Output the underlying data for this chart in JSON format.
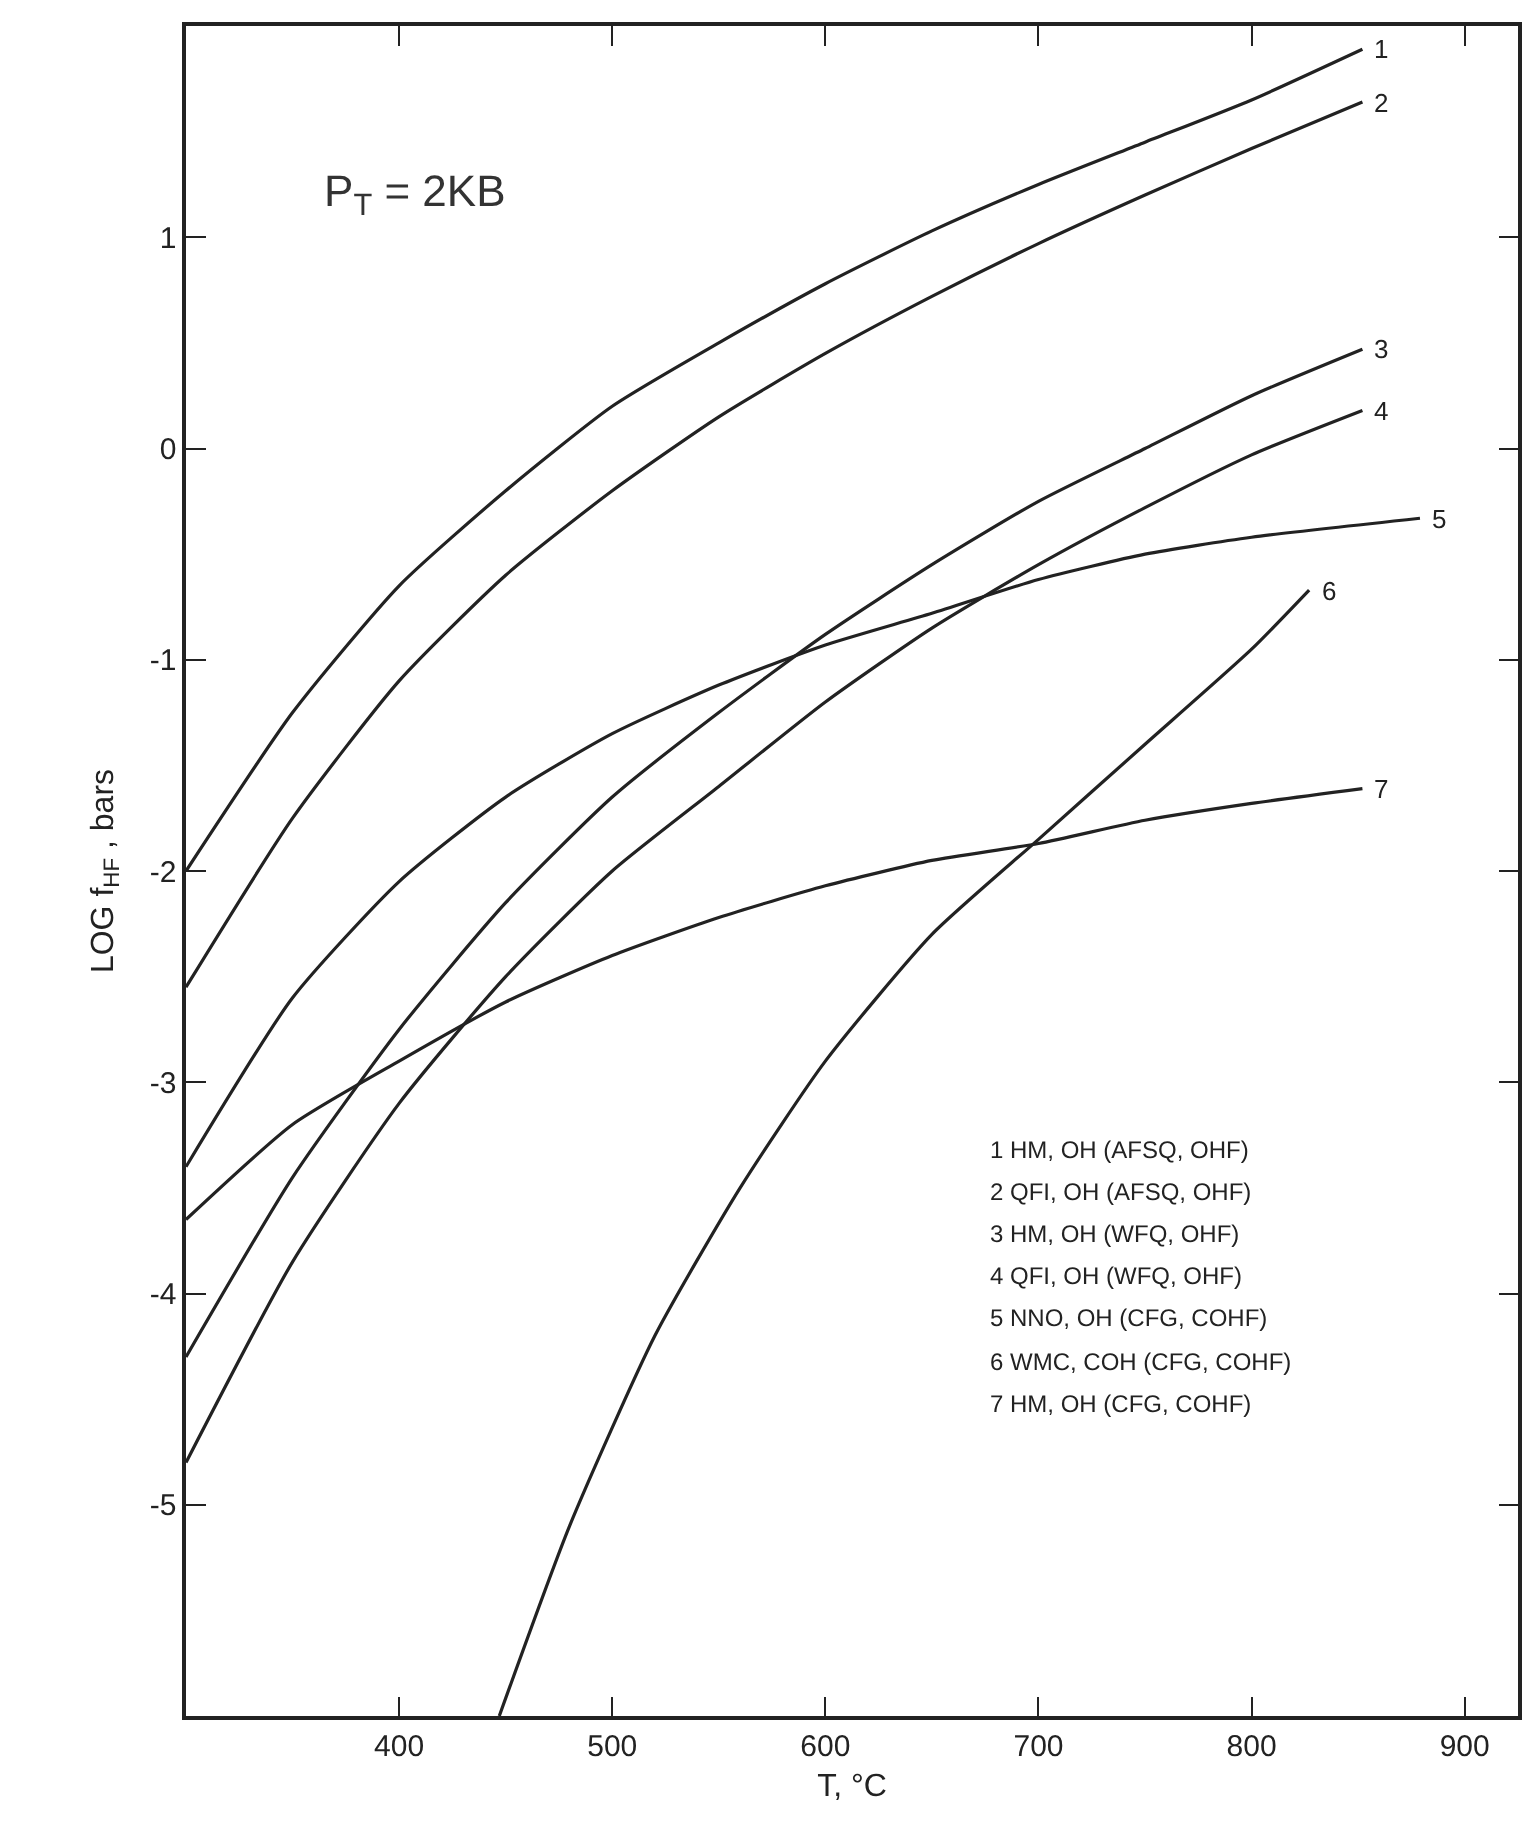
{
  "chart_data": {
    "type": "line",
    "xlabel": "T, °C",
    "ylabel": "LOG f$_{HF}$ , bars",
    "annotations": [
      "P$_{T}$ = 2KB",
      "1 HM, OH (AFSQ, OHF)",
      "2 QFI, OH (AFSQ, OHF)",
      "3 HM, OH (WFQ, OHF)",
      "4 QFI, OH (WFQ, OHF)",
      "5 NNO, OH (CFG, COHF)",
      "6 WMC, COH (CFG, COHF)",
      "7 HM, OH (CFG, COHF)"
    ],
    "series": [
      {
        "name": "1",
        "color": "#222222",
        "x": [
          300,
          350,
          400,
          450,
          500,
          550,
          600,
          650,
          700,
          750,
          800,
          852
        ],
        "values": [
          -2.0,
          -1.25,
          -0.65,
          -0.2,
          0.2,
          0.5,
          0.78,
          1.03,
          1.25,
          1.45,
          1.65,
          1.89
        ]
      },
      {
        "name": "2",
        "color": "#222222",
        "x": [
          300,
          350,
          400,
          450,
          500,
          550,
          600,
          650,
          700,
          750,
          800,
          852
        ],
        "values": [
          -2.55,
          -1.75,
          -1.1,
          -0.6,
          -0.2,
          0.15,
          0.45,
          0.72,
          0.97,
          1.2,
          1.42,
          1.64
        ]
      },
      {
        "name": "3",
        "color": "#222222",
        "x": [
          300,
          350,
          400,
          450,
          500,
          550,
          600,
          650,
          700,
          750,
          800,
          852
        ],
        "values": [
          -4.3,
          -3.45,
          -2.75,
          -2.15,
          -1.65,
          -1.25,
          -0.88,
          -0.55,
          -0.25,
          0.0,
          0.25,
          0.47
        ]
      },
      {
        "name": "4",
        "color": "#222222",
        "x": [
          300,
          350,
          400,
          450,
          500,
          550,
          600,
          650,
          700,
          750,
          800,
          852
        ],
        "values": [
          -4.8,
          -3.85,
          -3.1,
          -2.5,
          -2.0,
          -1.6,
          -1.2,
          -0.85,
          -0.55,
          -0.28,
          -0.03,
          0.18
        ]
      },
      {
        "name": "5",
        "color": "#222222",
        "x": [
          300,
          350,
          400,
          450,
          500,
          550,
          600,
          650,
          700,
          750,
          800,
          879
        ],
        "values": [
          -3.4,
          -2.6,
          -2.05,
          -1.65,
          -1.35,
          -1.12,
          -0.93,
          -0.78,
          -0.62,
          -0.5,
          -0.42,
          -0.33
        ]
      },
      {
        "name": "6",
        "color": "#222222",
        "x": [
          447,
          480,
          520,
          560,
          600,
          650,
          700,
          750,
          800,
          827
        ],
        "values": [
          -6.0,
          -5.1,
          -4.2,
          -3.5,
          -2.9,
          -2.3,
          -1.85,
          -1.4,
          -0.95,
          -0.67
        ]
      },
      {
        "name": "7",
        "color": "#222222",
        "x": [
          300,
          350,
          400,
          450,
          500,
          550,
          600,
          650,
          700,
          750,
          800,
          852
        ],
        "values": [
          -3.65,
          -3.2,
          -2.9,
          -2.62,
          -2.4,
          -2.22,
          -2.07,
          -1.95,
          -1.87,
          -1.76,
          -1.68,
          -1.61
        ]
      }
    ],
    "xlim": [
      300,
      925
    ],
    "xticks": [
      400,
      500,
      600,
      700,
      800,
      900
    ],
    "ylim": [
      -6,
      2
    ],
    "yticks": [
      -5,
      -4,
      -3,
      -2,
      -1,
      0,
      1
    ],
    "legend": false,
    "marker": "none",
    "line_style": "solid"
  }
}
